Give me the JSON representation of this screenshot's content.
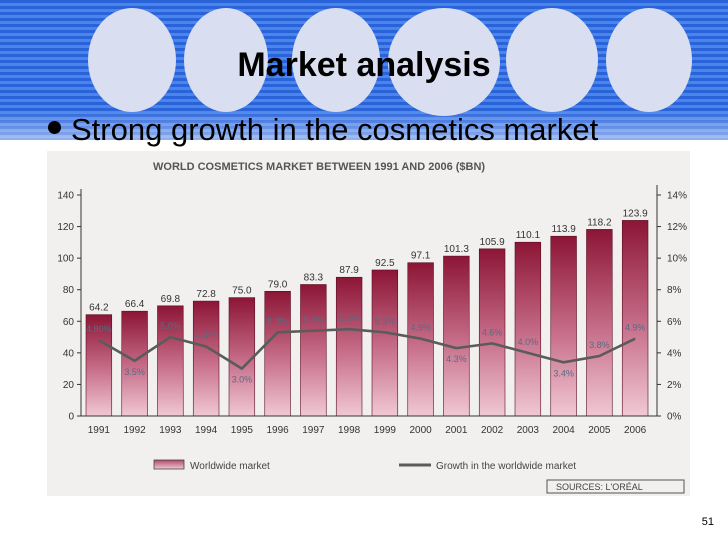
{
  "slide": {
    "title": "Market analysis",
    "bullet": "Strong growth in the cosmetics market",
    "page_number": "51"
  },
  "chart_data": {
    "type": "bar",
    "title": "WORLD COSMETICS MARKET BETWEEN 1991 AND 2006 ($BN)",
    "categories": [
      "1991",
      "1992",
      "1993",
      "1994",
      "1995",
      "1996",
      "1997",
      "1998",
      "1999",
      "2000",
      "2001",
      "2002",
      "2003",
      "2004",
      "2005",
      "2006"
    ],
    "series": [
      {
        "name": "Worldwide market",
        "type": "bar",
        "axis": "left",
        "values": [
          64.2,
          66.4,
          69.8,
          72.8,
          75.0,
          79.0,
          83.3,
          87.9,
          92.5,
          97.1,
          101.3,
          105.9,
          110.1,
          113.9,
          118.2,
          123.9
        ],
        "labels": [
          "64.2",
          "66.4",
          "69.8",
          "72.8",
          "75.0",
          "79.0",
          "83.3",
          "87.9",
          "92.5",
          "97.1",
          "101.3",
          "105.9",
          "110.1",
          "113.9",
          "118.2",
          "123.9"
        ]
      },
      {
        "name": "Growth in the worldwide market",
        "type": "line",
        "axis": "right",
        "values": [
          4.8,
          3.5,
          5.0,
          4.4,
          3.0,
          5.3,
          5.4,
          5.5,
          5.3,
          4.9,
          4.3,
          4.6,
          4.0,
          3.4,
          3.8,
          4.9
        ],
        "labels": [
          "4.80%",
          "3.5%",
          "5.0%",
          "4.4%",
          "3.0%",
          "5.3%",
          "5.4%",
          "5.5%",
          "5.3%",
          "4.9%",
          "4.3%",
          "4.6%",
          "4.0%",
          "3.4%",
          "3.8%",
          "4.9%"
        ]
      }
    ],
    "y_left": {
      "ylim": [
        0,
        140
      ],
      "ticks": [
        "0",
        "20",
        "40",
        "60",
        "80",
        "100",
        "120",
        "140"
      ]
    },
    "y_right": {
      "ylim": [
        0,
        14
      ],
      "ticks": [
        "0%",
        "2%",
        "4%",
        "6%",
        "8%",
        "10%",
        "12%",
        "14%"
      ]
    },
    "legend": [
      "Worldwide market",
      "Growth in the worldwide market"
    ],
    "legend_position": "bottom",
    "source": "SOURCES: L'ORÉAL",
    "colors": {
      "bar_top": "#8c1535",
      "bar_bottom": "#f0c8d4",
      "line": "#5b5b5b",
      "label": "#5a6a80"
    }
  }
}
